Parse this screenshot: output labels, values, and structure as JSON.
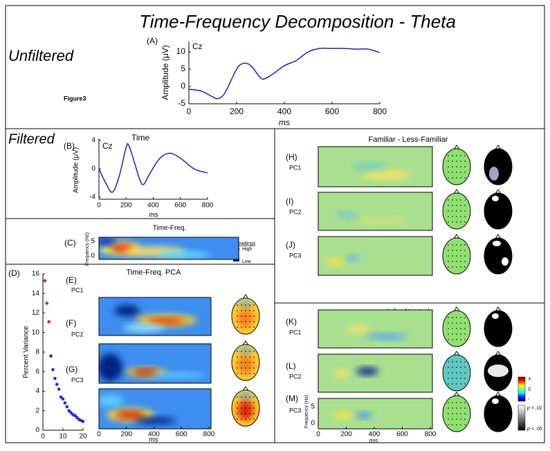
{
  "title": "Time-Frequency Decomposition - Theta",
  "labels": {
    "unfiltered": "Unfiltered",
    "filtered": "Filtered",
    "figure": "Figure3",
    "time": "Time",
    "time_freq": "Time-Freq.",
    "tf_pca": "Time-Freq. PCA",
    "familiar": "Familiar - Less-Familiar",
    "infer": "Infer-Neutral",
    "loadings": "Loadings",
    "high": "High",
    "low": "Low",
    "freq_axis": "Frequency (Hz)",
    "ms": "ms"
  },
  "panels": {
    "C": "(C)",
    "E": "(E)",
    "F": "(F)",
    "G": "(G)",
    "H": "(H)",
    "I": "(I)",
    "J": "(J)",
    "K": "(K)",
    "L": "(L)",
    "M": "(M)"
  },
  "pcs": [
    "PC1",
    "PC2",
    "PC3"
  ],
  "colorbar": {
    "plus": "+",
    "zero": "0",
    "minus": "-",
    "p01": "p < .01",
    "p05": "p < .05"
  },
  "heatmap_axis": {
    "xticks": [
      0,
      200,
      400,
      600,
      800
    ],
    "yticks": [
      0,
      5
    ]
  },
  "chart_data": [
    {
      "type": "line",
      "panel": "(A)",
      "channel": "Cz",
      "ylabel": "Amplitude (μV)",
      "xlabel": "ms",
      "color": "#1a1ad6",
      "x": [
        0,
        50,
        100,
        120,
        150,
        200,
        230,
        260,
        300,
        320,
        350,
        400,
        450,
        500,
        550,
        600,
        650,
        700,
        750,
        800
      ],
      "values": [
        -0.8,
        -1.3,
        -3,
        -3.5,
        -2,
        5,
        6.7,
        6,
        2.5,
        2.3,
        3.5,
        6,
        7.5,
        10,
        11,
        11,
        11,
        10.8,
        10.8,
        9.8
      ],
      "xlim": [
        0,
        800
      ],
      "ylim": [
        -5,
        13
      ],
      "xticks": [
        0,
        200,
        400,
        600,
        800
      ],
      "yticks": [
        -5,
        0,
        5,
        10
      ]
    },
    {
      "type": "line",
      "panel": "(B)",
      "channel": "Cz",
      "ylabel": "Amplitude (μV)",
      "xlabel": "ms",
      "color": "#1a1ad6",
      "x": [
        0,
        50,
        100,
        150,
        200,
        220,
        260,
        300,
        330,
        380,
        450,
        520,
        600,
        700,
        800
      ],
      "values": [
        0,
        -2,
        -3.3,
        -1,
        3,
        3.3,
        1,
        -1.5,
        -2.2,
        -0.5,
        1.5,
        2.2,
        1.5,
        0,
        -0.6
      ],
      "xlim": [
        0,
        800
      ],
      "ylim": [
        -4.3,
        4.3
      ],
      "xticks": [
        0,
        200,
        400,
        600,
        800
      ],
      "yticks": [
        4,
        0,
        -4
      ]
    },
    {
      "type": "scatter",
      "panel": "(D)",
      "ylabel": "Percent Variance",
      "series": [
        {
          "color": "#e0201c",
          "x": [
            1,
            2,
            3
          ],
          "values": [
            15.3,
            13.0,
            11.1
          ]
        },
        {
          "color": "#1a2fe0",
          "x": [
            4,
            5,
            6,
            7,
            8,
            9,
            10,
            11,
            12,
            13,
            14,
            15,
            16,
            17,
            18,
            19,
            20
          ],
          "values": [
            7.6,
            6.2,
            5.3,
            4.7,
            4.2,
            3.4,
            3.2,
            2.8,
            2.4,
            2.0,
            1.8,
            1.6,
            1.5,
            1.3,
            1.1,
            1.0,
            0.9
          ]
        }
      ],
      "xlim": [
        0,
        20
      ],
      "ylim": [
        0,
        16
      ],
      "xticks": [
        0,
        10,
        20
      ],
      "yticks": [
        0,
        2,
        4,
        6,
        8,
        10,
        12,
        14,
        16
      ]
    }
  ]
}
